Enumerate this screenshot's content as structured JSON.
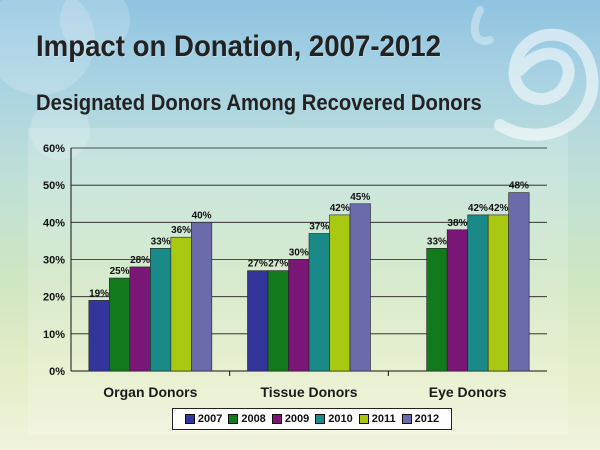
{
  "slide": {
    "title": "Impact on Donation, 2007-2012",
    "subtitle": "Designated Donors Among Recovered Donors"
  },
  "colors": {
    "2007": "#33359b",
    "2008": "#127a1c",
    "2009": "#7a1676",
    "2010": "#1a8a88",
    "2011": "#a9c812",
    "2012": "#6b6bab"
  },
  "chart_data": {
    "type": "bar",
    "title": "Designated Donors Among Recovered Donors",
    "categories": [
      "Organ Donors",
      "Tissue Donors",
      "Eye Donors"
    ],
    "series": [
      {
        "name": "2007",
        "values": [
          19,
          27,
          null
        ],
        "labels": [
          "19%",
          "27%",
          ""
        ]
      },
      {
        "name": "2008",
        "values": [
          25,
          27,
          33
        ],
        "labels": [
          "25%",
          "27%",
          "33%"
        ]
      },
      {
        "name": "2009",
        "values": [
          28,
          30,
          38
        ],
        "labels": [
          "28%",
          "30%",
          "38%"
        ]
      },
      {
        "name": "2010",
        "values": [
          33,
          37,
          42
        ],
        "labels": [
          "33%",
          "37%",
          "42%"
        ]
      },
      {
        "name": "2011",
        "values": [
          36,
          42,
          42
        ],
        "labels": [
          "36%",
          "42%",
          "42%"
        ]
      },
      {
        "name": "2012",
        "values": [
          40,
          45,
          48
        ],
        "labels": [
          "40%",
          "45%",
          "48%"
        ]
      }
    ],
    "ylim": [
      0,
      60
    ],
    "yticks": [
      "0%",
      "10%",
      "20%",
      "30%",
      "40%",
      "50%",
      "60%"
    ],
    "grid": true,
    "legend": "bottom"
  }
}
